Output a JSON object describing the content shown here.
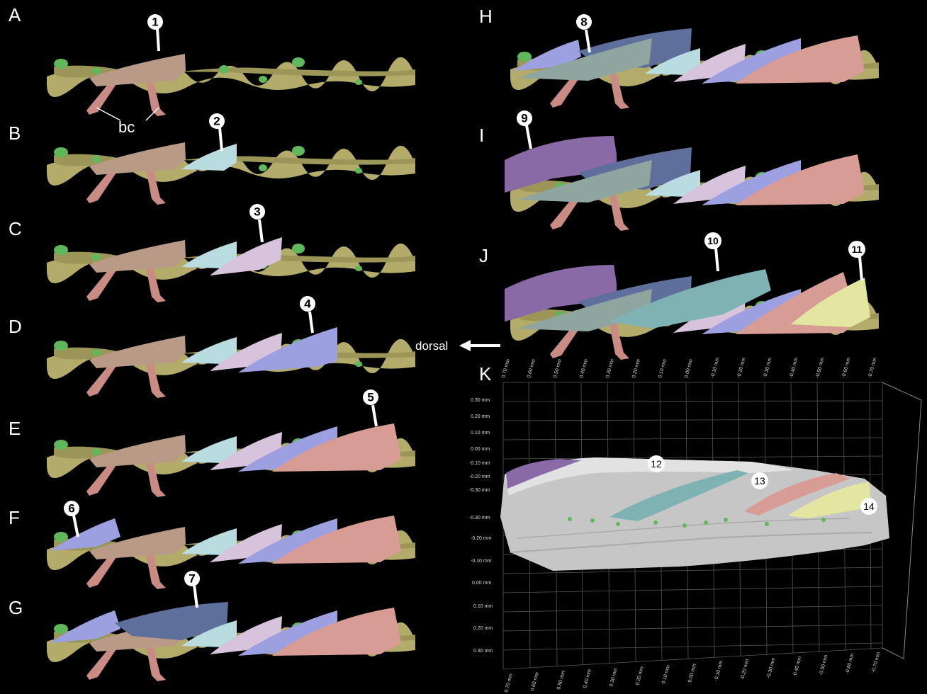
{
  "panels": {
    "A": "A",
    "B": "B",
    "C": "C",
    "D": "D",
    "E": "E",
    "F": "F",
    "G": "G",
    "H": "H",
    "I": "I",
    "J": "J",
    "K": "K"
  },
  "callouts": [
    "1",
    "2",
    "3",
    "4",
    "5",
    "6",
    "7",
    "8",
    "9",
    "10",
    "11",
    "12",
    "13",
    "14"
  ],
  "labels": {
    "bc": "bc",
    "dorsal": "dorsal"
  },
  "axis_ticks": {
    "top": [
      "0.70 mm",
      "0.60 mm",
      "0.50 mm",
      "0.40 mm",
      "0.30 mm",
      "0.20 mm",
      "0.10 mm",
      "0.00 mm",
      "-0.10 mm",
      "-0.20 mm",
      "-0.30 mm",
      "-0.40 mm",
      "-0.50 mm",
      "-0.60 mm",
      "-0.70 mm"
    ],
    "left": [
      "0.30 mm",
      "0.20 mm",
      "0.10 mm",
      "0.00 mm",
      "-0.10 mm",
      "-0.20 mm",
      "-0.30 mm",
      "-0.30 mm",
      "-0.20 mm",
      "-0.10 mm",
      "0.00 mm",
      "0.10 mm",
      "0.20 mm",
      "0.30 mm"
    ],
    "bottom": [
      "0.70 mm",
      "0.60 mm",
      "0.50 mm",
      "0.40 mm",
      "0.30 mm",
      "0.20 mm",
      "0.10 mm",
      "0.00 mm",
      "-0.10 mm",
      "-0.20 mm",
      "-0.30 mm",
      "-0.40 mm",
      "-0.50 mm",
      "-0.60 mm",
      "-0.70 mm"
    ]
  },
  "colors": {
    "background": "#000000",
    "bone_olive": "#b3ab6a",
    "tissue_green": "#5fb85a",
    "scale_tan": "#b99a86",
    "scale_light_blue": "#b9dce0",
    "scale_lavender": "#d7c4dc",
    "scale_periwinkle": "#9c9fe0",
    "scale_pink": "#d79c93",
    "scale_slate": "#5d6f9a",
    "scale_grey_green": "#8fa5a0",
    "scale_purple": "#8a6aa6",
    "scale_teal": "#7fb2b2",
    "scale_yellow": "#e2e6a0",
    "cartilage_pink": "#c98b84",
    "surface_grey": "#c8c8c8"
  }
}
